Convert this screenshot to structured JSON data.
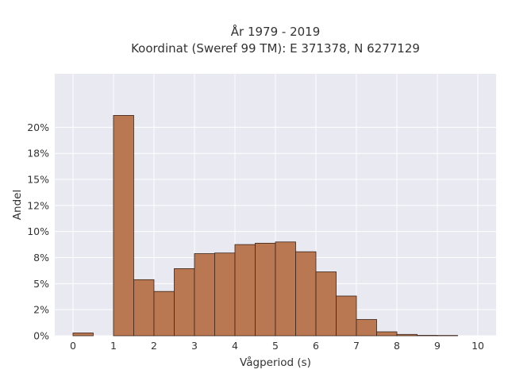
{
  "chart_data": {
    "type": "bar",
    "title": "År 1979 - 2019",
    "subtitle": "Koordinat (Sweref 99 TM): E 371378, N 6277129",
    "xlabel": "Vågperiod (s)",
    "ylabel": "Andel",
    "bin_width": 0.5,
    "xlim": [
      -0.45,
      10.45
    ],
    "ylim": [
      0,
      0.2513
    ],
    "x_ticks": [
      0,
      1,
      2,
      3,
      4,
      5,
      6,
      7,
      8,
      9,
      10
    ],
    "y_ticks": [
      0,
      0.025,
      0.05,
      0.075,
      0.1,
      0.125,
      0.15,
      0.175,
      0.2
    ],
    "y_tick_labels": [
      "0%",
      "2%",
      "5%",
      "8%",
      "10%",
      "12%",
      "15%",
      "18%",
      "20%"
    ],
    "grid": true,
    "bar_color": "#b97752",
    "bar_edge_color": "#3a2418",
    "background_color": "#e9e9f1",
    "bins": [
      {
        "x_start": 0.0,
        "value": 0.0027
      },
      {
        "x_start": 1.0,
        "value": 0.2114
      },
      {
        "x_start": 1.5,
        "value": 0.0538
      },
      {
        "x_start": 2.0,
        "value": 0.0425
      },
      {
        "x_start": 2.5,
        "value": 0.0644
      },
      {
        "x_start": 3.0,
        "value": 0.0788
      },
      {
        "x_start": 3.5,
        "value": 0.0794
      },
      {
        "x_start": 4.0,
        "value": 0.0875
      },
      {
        "x_start": 4.5,
        "value": 0.0888
      },
      {
        "x_start": 5.0,
        "value": 0.09
      },
      {
        "x_start": 5.5,
        "value": 0.0806
      },
      {
        "x_start": 6.0,
        "value": 0.0613
      },
      {
        "x_start": 6.5,
        "value": 0.0381
      },
      {
        "x_start": 7.0,
        "value": 0.0156
      },
      {
        "x_start": 7.5,
        "value": 0.0038
      },
      {
        "x_start": 8.0,
        "value": 0.0013
      },
      {
        "x_start": 8.5,
        "value": 0.0004
      },
      {
        "x_start": 9.0,
        "value": 0.0003
      }
    ]
  }
}
